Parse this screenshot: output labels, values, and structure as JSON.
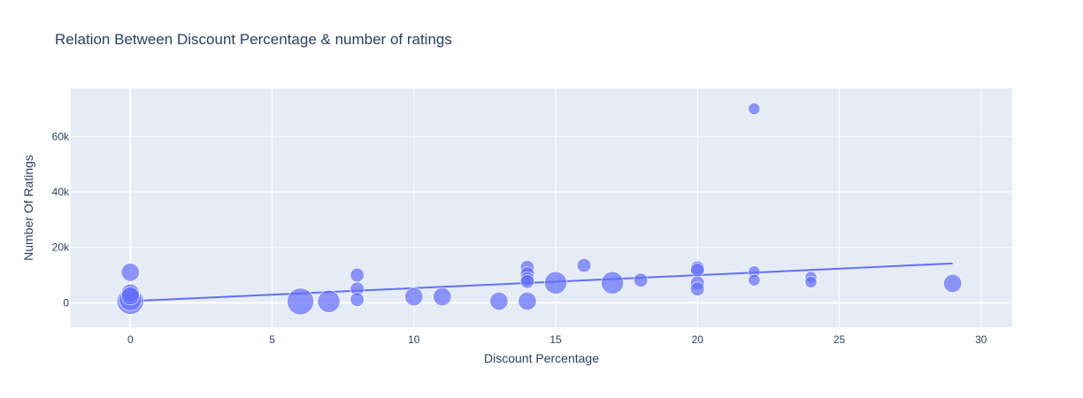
{
  "chart_data": {
    "type": "scatter",
    "title": "Relation Between Discount Percentage & number of ratings",
    "xlabel": "Discount Percentage",
    "ylabel": "Number Of Ratings",
    "xlim": [
      -2.1,
      31.1
    ],
    "ylim": [
      -8800,
      77300
    ],
    "x_ticks": [
      0,
      5,
      10,
      15,
      20,
      25,
      30
    ],
    "x_tick_labels": [
      "0",
      "5",
      "10",
      "15",
      "20",
      "25",
      "30"
    ],
    "y_ticks": [
      0,
      20000,
      40000,
      60000
    ],
    "y_tick_labels": [
      "0",
      "20k",
      "40k",
      "60k"
    ],
    "grid": true,
    "legend": "none",
    "colors": {
      "plot_background": "#e5ecf6",
      "grid": "#ffffff",
      "marker": "#636efa",
      "marker_outline": "#ffffff",
      "trendline": "#636efa",
      "text": "#2a3f5f"
    },
    "series": [
      {
        "type": "scatter",
        "points": [
          {
            "x": 0,
            "y": 11000,
            "size": 3
          },
          {
            "x": 0,
            "y": 3500,
            "size": 3
          },
          {
            "x": 0,
            "y": 2500,
            "size": 3
          },
          {
            "x": 0,
            "y": 1200,
            "size": 4
          },
          {
            "x": 0,
            "y": 600,
            "size": 5
          },
          {
            "x": 6,
            "y": 500,
            "size": 5
          },
          {
            "x": 7,
            "y": 500,
            "size": 4
          },
          {
            "x": 8,
            "y": 10000,
            "size": 2
          },
          {
            "x": 8,
            "y": 5000,
            "size": 2
          },
          {
            "x": 8,
            "y": 1200,
            "size": 2
          },
          {
            "x": 10,
            "y": 2200,
            "size": 3
          },
          {
            "x": 11,
            "y": 2200,
            "size": 3
          },
          {
            "x": 13,
            "y": 600,
            "size": 3
          },
          {
            "x": 14,
            "y": 12800,
            "size": 2
          },
          {
            "x": 14,
            "y": 10500,
            "size": 2
          },
          {
            "x": 14,
            "y": 8600,
            "size": 2
          },
          {
            "x": 14,
            "y": 7700,
            "size": 2
          },
          {
            "x": 14,
            "y": 600,
            "size": 3
          },
          {
            "x": 15,
            "y": 7200,
            "size": 4
          },
          {
            "x": 16,
            "y": 13500,
            "size": 2
          },
          {
            "x": 17,
            "y": 7200,
            "size": 4
          },
          {
            "x": 18,
            "y": 8200,
            "size": 2
          },
          {
            "x": 20,
            "y": 12600,
            "size": 2
          },
          {
            "x": 20,
            "y": 11800,
            "size": 2
          },
          {
            "x": 20,
            "y": 7200,
            "size": 2
          },
          {
            "x": 20,
            "y": 5000,
            "size": 2
          },
          {
            "x": 22,
            "y": 70000,
            "size": 1.5
          },
          {
            "x": 22,
            "y": 11200,
            "size": 1.5
          },
          {
            "x": 22,
            "y": 8200,
            "size": 1.5
          },
          {
            "x": 24,
            "y": 9200,
            "size": 1.5
          },
          {
            "x": 24,
            "y": 7500,
            "size": 1.5
          },
          {
            "x": 29,
            "y": 7000,
            "size": 3
          }
        ]
      },
      {
        "type": "line",
        "x": [
          0,
          29
        ],
        "y": [
          600,
          14200
        ]
      }
    ]
  }
}
